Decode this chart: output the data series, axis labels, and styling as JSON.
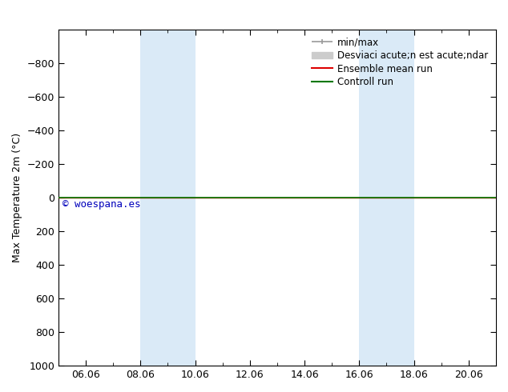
{
  "ylabel": "Max Temperature 2m (°C)",
  "ylim_bottom": -1000,
  "ylim_top": 1000,
  "yticks": [
    -800,
    -600,
    -400,
    -200,
    0,
    200,
    400,
    600,
    800,
    1000
  ],
  "xtick_labels": [
    "06.06",
    "08.06",
    "10.06",
    "12.06",
    "14.06",
    "16.06",
    "18.06",
    "20.06"
  ],
  "xtick_positions": [
    2,
    4,
    6,
    8,
    10,
    12,
    14,
    16
  ],
  "x_min": 1,
  "x_max": 17,
  "shaded_regions": [
    {
      "xmin": 4,
      "xmax": 6
    },
    {
      "xmin": 12,
      "xmax": 14
    }
  ],
  "shaded_color": "#daeaf7",
  "horizontal_line_y": 0,
  "control_run_color": "#007700",
  "ensemble_mean_color": "#dd0000",
  "minmax_color": "#999999",
  "std_color": "#cccccc",
  "watermark_text": "© woespana.es",
  "watermark_color": "#0000bb",
  "watermark_fontsize": 9,
  "legend_label_minmax": "min/max",
  "legend_label_std": "Desviaci acute;n est acute;ndar",
  "legend_label_ensemble": "Ensemble mean run",
  "legend_label_control": "Controll run",
  "title_fontsize": 11,
  "tick_fontsize": 9,
  "ylabel_fontsize": 9,
  "legend_fontsize": 8.5,
  "bg_color": "#ffffff"
}
